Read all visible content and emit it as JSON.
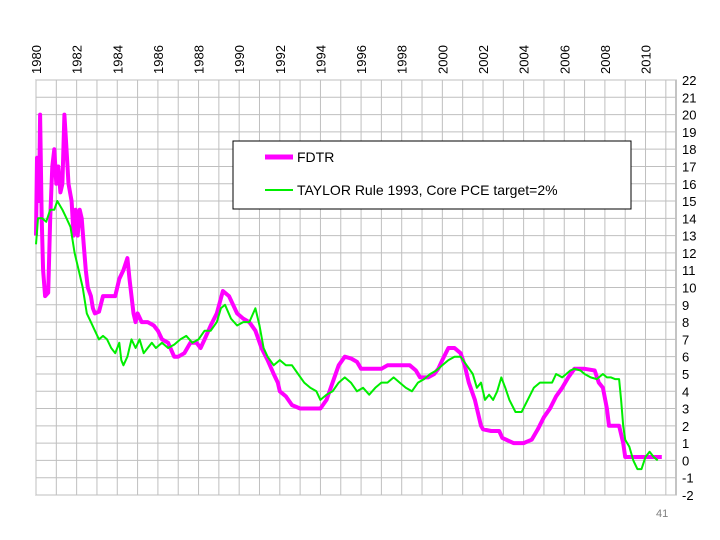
{
  "slide": {
    "page_number": "41"
  },
  "colors": {
    "fdtr": "#ff00ff",
    "taylor": "#00ee00",
    "grid": "#bfbfbf",
    "frame": "#888888"
  },
  "chart_data": {
    "type": "line",
    "title": "",
    "xlabel": "",
    "ylabel": "",
    "xlim": [
      1980,
      2011.5
    ],
    "ylim": [
      -2,
      22
    ],
    "x_ticks": [
      "1980",
      "1982",
      "1984",
      "1986",
      "1988",
      "1990",
      "1992",
      "1994",
      "1996",
      "1998",
      "2000",
      "2002",
      "2004",
      "2006",
      "2008",
      "2010"
    ],
    "y_ticks": [
      "22",
      "21",
      "20",
      "19",
      "18",
      "17",
      "16",
      "15",
      "14",
      "13",
      "12",
      "11",
      "10",
      "9",
      "8",
      "7",
      "6",
      "5",
      "4",
      "3",
      "2",
      "1",
      "0",
      "-1",
      "-2"
    ],
    "grid": true,
    "legend_position": "top-center",
    "series": [
      {
        "name": "FDTR",
        "color": "#ff00ff",
        "points": [
          [
            1980.0,
            13
          ],
          [
            1980.05,
            17.5
          ],
          [
            1980.15,
            15
          ],
          [
            1980.2,
            20
          ],
          [
            1980.28,
            14
          ],
          [
            1980.35,
            11
          ],
          [
            1980.45,
            9.5
          ],
          [
            1980.6,
            9.7
          ],
          [
            1980.7,
            14
          ],
          [
            1980.8,
            17
          ],
          [
            1980.9,
            18
          ],
          [
            1981.0,
            16
          ],
          [
            1981.1,
            17
          ],
          [
            1981.2,
            15.5
          ],
          [
            1981.3,
            16
          ],
          [
            1981.4,
            20
          ],
          [
            1981.5,
            18
          ],
          [
            1981.6,
            16
          ],
          [
            1981.75,
            15
          ],
          [
            1981.85,
            13
          ],
          [
            1981.95,
            14.5
          ],
          [
            1982.05,
            13
          ],
          [
            1982.15,
            14.5
          ],
          [
            1982.25,
            14
          ],
          [
            1982.35,
            12.5
          ],
          [
            1982.45,
            11
          ],
          [
            1982.55,
            10
          ],
          [
            1982.7,
            9.5
          ],
          [
            1982.8,
            8.8
          ],
          [
            1982.9,
            8.5
          ],
          [
            1983.1,
            8.6
          ],
          [
            1983.3,
            9.5
          ],
          [
            1983.6,
            9.5
          ],
          [
            1983.9,
            9.5
          ],
          [
            1984.1,
            10.5
          ],
          [
            1984.3,
            11
          ],
          [
            1984.5,
            11.7
          ],
          [
            1984.6,
            10.5
          ],
          [
            1984.7,
            9.5
          ],
          [
            1984.8,
            8.5
          ],
          [
            1984.9,
            8
          ],
          [
            1985.0,
            8.5
          ],
          [
            1985.2,
            8
          ],
          [
            1985.5,
            8
          ],
          [
            1985.8,
            7.8
          ],
          [
            1986.0,
            7.5
          ],
          [
            1986.2,
            7
          ],
          [
            1986.5,
            6.8
          ],
          [
            1986.8,
            6
          ],
          [
            1987.0,
            6
          ],
          [
            1987.3,
            6.2
          ],
          [
            1987.6,
            6.8
          ],
          [
            1987.9,
            6.8
          ],
          [
            1988.1,
            6.5
          ],
          [
            1988.3,
            7
          ],
          [
            1988.6,
            7.8
          ],
          [
            1988.9,
            8.5
          ],
          [
            1989.2,
            9.8
          ],
          [
            1989.5,
            9.5
          ],
          [
            1989.7,
            9
          ],
          [
            1989.9,
            8.5
          ],
          [
            1990.2,
            8.2
          ],
          [
            1990.5,
            8
          ],
          [
            1990.8,
            7.5
          ],
          [
            1991.1,
            6.5
          ],
          [
            1991.4,
            5.8
          ],
          [
            1991.7,
            5
          ],
          [
            1991.9,
            4.5
          ],
          [
            1992.0,
            4
          ],
          [
            1992.3,
            3.7
          ],
          [
            1992.6,
            3.2
          ],
          [
            1993.0,
            3
          ],
          [
            1993.5,
            3
          ],
          [
            1994.0,
            3
          ],
          [
            1994.3,
            3.5
          ],
          [
            1994.6,
            4.5
          ],
          [
            1994.9,
            5.5
          ],
          [
            1995.2,
            6
          ],
          [
            1995.5,
            5.9
          ],
          [
            1995.8,
            5.7
          ],
          [
            1996.0,
            5.3
          ],
          [
            1996.5,
            5.3
          ],
          [
            1997.0,
            5.3
          ],
          [
            1997.3,
            5.5
          ],
          [
            1997.8,
            5.5
          ],
          [
            1998.4,
            5.5
          ],
          [
            1998.7,
            5.2
          ],
          [
            1998.9,
            4.8
          ],
          [
            1999.3,
            4.8
          ],
          [
            1999.6,
            5
          ],
          [
            1999.8,
            5.3
          ],
          [
            2000.0,
            5.8
          ],
          [
            2000.3,
            6.5
          ],
          [
            2000.6,
            6.5
          ],
          [
            2000.9,
            6.2
          ],
          [
            2001.1,
            5.5
          ],
          [
            2001.3,
            4.5
          ],
          [
            2001.6,
            3.5
          ],
          [
            2001.9,
            2
          ],
          [
            2002.0,
            1.8
          ],
          [
            2002.4,
            1.7
          ],
          [
            2002.8,
            1.7
          ],
          [
            2002.95,
            1.3
          ],
          [
            2003.5,
            1
          ],
          [
            2004.0,
            1
          ],
          [
            2004.4,
            1.2
          ],
          [
            2004.7,
            1.8
          ],
          [
            2005.0,
            2.5
          ],
          [
            2005.3,
            3
          ],
          [
            2005.6,
            3.7
          ],
          [
            2005.9,
            4.2
          ],
          [
            2006.2,
            4.8
          ],
          [
            2006.5,
            5.3
          ],
          [
            2007.0,
            5.3
          ],
          [
            2007.5,
            5.2
          ],
          [
            2007.7,
            4.5
          ],
          [
            2007.9,
            4.2
          ],
          [
            2008.1,
            3
          ],
          [
            2008.2,
            2
          ],
          [
            2008.5,
            2
          ],
          [
            2008.7,
            2
          ],
          [
            2008.9,
            1
          ],
          [
            2009.0,
            0.2
          ],
          [
            2009.3,
            0.2
          ],
          [
            2009.6,
            0.2
          ],
          [
            2009.9,
            0.2
          ],
          [
            2010.2,
            0.2
          ],
          [
            2010.5,
            0.2
          ],
          [
            2010.8,
            0.2
          ]
        ]
      },
      {
        "name": "TAYLOR Rule 1993, Core PCE target=2%",
        "color": "#00ee00",
        "points": [
          [
            1980.0,
            12.5
          ],
          [
            1980.1,
            14
          ],
          [
            1980.3,
            14
          ],
          [
            1980.5,
            13.8
          ],
          [
            1980.7,
            14.5
          ],
          [
            1980.9,
            14.5
          ],
          [
            1981.05,
            15
          ],
          [
            1981.3,
            14.5
          ],
          [
            1981.5,
            14
          ],
          [
            1981.7,
            13.5
          ],
          [
            1981.9,
            12
          ],
          [
            1982.1,
            11
          ],
          [
            1982.3,
            10
          ],
          [
            1982.5,
            8.5
          ],
          [
            1982.7,
            8
          ],
          [
            1982.9,
            7.5
          ],
          [
            1983.1,
            7
          ],
          [
            1983.3,
            7.2
          ],
          [
            1983.5,
            7
          ],
          [
            1983.7,
            6.5
          ],
          [
            1983.9,
            6.2
          ],
          [
            1984.1,
            6.8
          ],
          [
            1984.2,
            5.8
          ],
          [
            1984.3,
            5.5
          ],
          [
            1984.5,
            6
          ],
          [
            1984.7,
            7
          ],
          [
            1984.9,
            6.5
          ],
          [
            1985.1,
            7
          ],
          [
            1985.3,
            6.2
          ],
          [
            1985.5,
            6.5
          ],
          [
            1985.7,
            6.8
          ],
          [
            1985.9,
            6.5
          ],
          [
            1986.2,
            6.8
          ],
          [
            1986.5,
            6.5
          ],
          [
            1986.8,
            6.7
          ],
          [
            1987.1,
            7
          ],
          [
            1987.4,
            7.2
          ],
          [
            1987.7,
            6.8
          ],
          [
            1988.0,
            7
          ],
          [
            1988.3,
            7.5
          ],
          [
            1988.6,
            7.5
          ],
          [
            1988.9,
            8
          ],
          [
            1989.1,
            8.8
          ],
          [
            1989.3,
            9
          ],
          [
            1989.6,
            8.2
          ],
          [
            1989.9,
            7.8
          ],
          [
            1990.2,
            8
          ],
          [
            1990.5,
            8
          ],
          [
            1990.8,
            8.8
          ],
          [
            1991.0,
            7.8
          ],
          [
            1991.2,
            6.5
          ],
          [
            1991.4,
            6
          ],
          [
            1991.7,
            5.5
          ],
          [
            1992.0,
            5.8
          ],
          [
            1992.3,
            5.5
          ],
          [
            1992.6,
            5.5
          ],
          [
            1992.9,
            5
          ],
          [
            1993.2,
            4.5
          ],
          [
            1993.5,
            4.2
          ],
          [
            1993.8,
            4
          ],
          [
            1994.0,
            3.5
          ],
          [
            1994.3,
            3.8
          ],
          [
            1994.6,
            4
          ],
          [
            1994.9,
            4.5
          ],
          [
            1995.2,
            4.8
          ],
          [
            1995.5,
            4.5
          ],
          [
            1995.8,
            4
          ],
          [
            1996.1,
            4.2
          ],
          [
            1996.4,
            3.8
          ],
          [
            1996.7,
            4.2
          ],
          [
            1997.0,
            4.5
          ],
          [
            1997.3,
            4.5
          ],
          [
            1997.6,
            4.8
          ],
          [
            1997.9,
            4.5
          ],
          [
            1998.2,
            4.2
          ],
          [
            1998.5,
            4
          ],
          [
            1998.8,
            4.5
          ],
          [
            1999.1,
            4.7
          ],
          [
            1999.4,
            5
          ],
          [
            1999.7,
            5.2
          ],
          [
            2000.0,
            5.5
          ],
          [
            2000.3,
            5.8
          ],
          [
            2000.6,
            6
          ],
          [
            2000.9,
            6
          ],
          [
            2001.2,
            5.5
          ],
          [
            2001.5,
            5
          ],
          [
            2001.7,
            4.2
          ],
          [
            2001.9,
            4.5
          ],
          [
            2002.1,
            3.5
          ],
          [
            2002.3,
            3.8
          ],
          [
            2002.5,
            3.5
          ],
          [
            2002.7,
            4
          ],
          [
            2002.9,
            4.8
          ],
          [
            2003.1,
            4.2
          ],
          [
            2003.3,
            3.5
          ],
          [
            2003.6,
            2.8
          ],
          [
            2003.9,
            2.8
          ],
          [
            2004.2,
            3.5
          ],
          [
            2004.5,
            4.2
          ],
          [
            2004.8,
            4.5
          ],
          [
            2005.1,
            4.5
          ],
          [
            2005.4,
            4.5
          ],
          [
            2005.6,
            5
          ],
          [
            2005.9,
            4.8
          ],
          [
            2006.1,
            5
          ],
          [
            2006.3,
            5.2
          ],
          [
            2006.5,
            5.3
          ],
          [
            2006.8,
            5.2
          ],
          [
            2007.0,
            5
          ],
          [
            2007.3,
            4.8
          ],
          [
            2007.6,
            4.7
          ],
          [
            2007.9,
            5
          ],
          [
            2008.1,
            4.8
          ],
          [
            2008.3,
            4.8
          ],
          [
            2008.5,
            4.7
          ],
          [
            2008.7,
            4.7
          ],
          [
            2008.8,
            3.5
          ],
          [
            2008.9,
            2
          ],
          [
            2009.0,
            1.2
          ],
          [
            2009.2,
            0.8
          ],
          [
            2009.4,
            0
          ],
          [
            2009.6,
            -0.5
          ],
          [
            2009.8,
            -0.5
          ],
          [
            2010.0,
            0.2
          ],
          [
            2010.2,
            0.5
          ],
          [
            2010.4,
            0.2
          ],
          [
            2010.6,
            0
          ]
        ]
      }
    ]
  }
}
